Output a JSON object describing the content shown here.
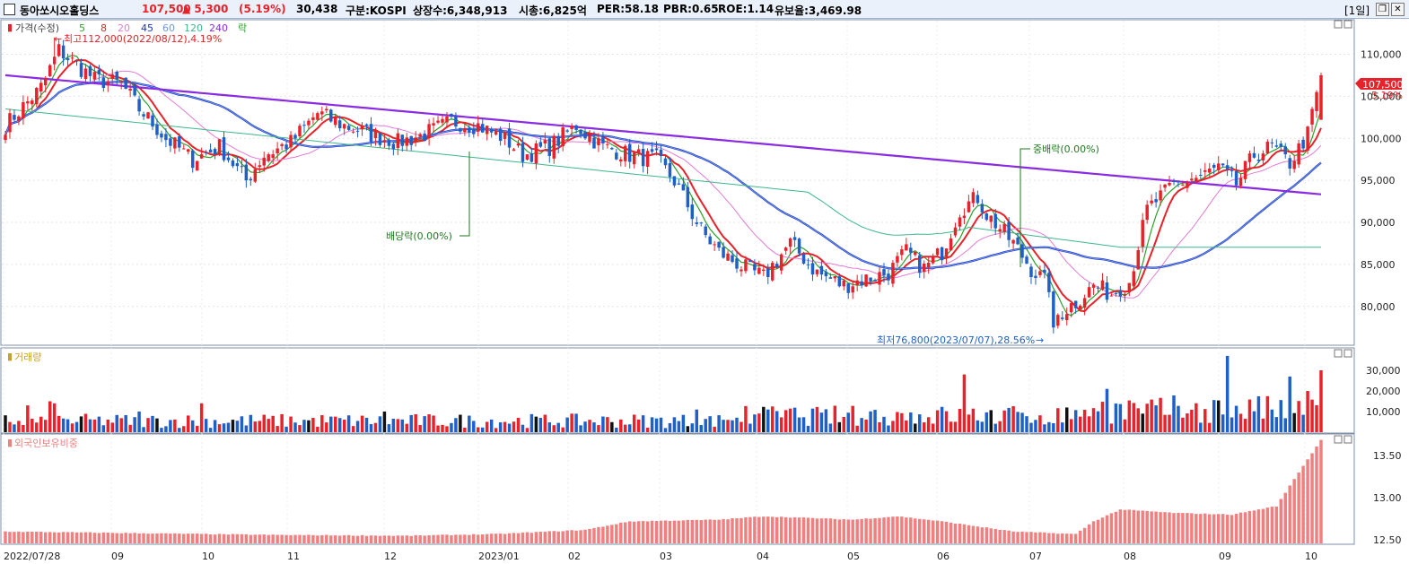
{
  "header": {
    "name": "동아쏘시오홀딩스",
    "price": "107,500",
    "change": "▲ 5,300",
    "change_pct": "(5.19%)",
    "volume": "30,438",
    "market": "구분:KOSPI",
    "shares": "상장수:6,348,913",
    "mcap": "시총:6,825억",
    "per": "PER:58.18",
    "pbr": "PBR:0.65",
    "roe": "ROE:1.14",
    "float": "유보율:3,469.98",
    "period": "[1일]",
    "btn_restore": "❐",
    "btn_close": "✕"
  },
  "legend": {
    "price": "가격(수정)",
    "ma5": "5",
    "ma8": "8",
    "ma20": "20",
    "ma45": "45",
    "ma60": "60",
    "ma120": "120",
    "ma240": "240",
    "event": "락"
  },
  "annotations": {
    "high": "최고112,000(2022/08/12),4.19%",
    "low": "최저76,800(2023/07/07),28.56%",
    "dividend": "배당락(0.00%)",
    "mid_dividend": "중배락(0.00%)",
    "last_price": "107,500",
    "last_pct": "5.19%"
  },
  "panels": {
    "volume_title": "거래량",
    "foreign_title": "외국인보유비중"
  },
  "colors": {
    "up": "#e8222a",
    "down": "#1e5fc8",
    "ma5": "#2ca02c",
    "ma8": "#e8222a",
    "ma20": "#e37bd6",
    "ma45": "#1a2fd6",
    "ma60": "#6d9ad8",
    "ma120": "#3cb88c",
    "ma240": "#8a2be2",
    "foreign": "#f08080",
    "annotation": "#1f7a1f"
  },
  "chart_data": [
    {
      "type": "candlestick",
      "title": "가격(수정)",
      "x_ticks": [
        "2022/07/28",
        "09",
        "10",
        "11",
        "12",
        "2023/01",
        "02",
        "03",
        "04",
        "05",
        "06",
        "07",
        "08",
        "09",
        "10"
      ],
      "y_ticks": [
        "110,000",
        "105,000",
        "100,000",
        "95,000",
        "90,000",
        "85,000",
        "80,000"
      ],
      "ylim": [
        75500,
        114000
      ],
      "y_tick_values": [
        110000,
        105000,
        100000,
        95000,
        90000,
        85000,
        80000
      ],
      "close_anchors": [
        [
          0,
          101500
        ],
        [
          8,
          106000
        ],
        [
          12,
          110500
        ],
        [
          20,
          107000
        ],
        [
          26,
          106500
        ],
        [
          30,
          103500
        ],
        [
          36,
          100000
        ],
        [
          42,
          97500
        ],
        [
          48,
          99000
        ],
        [
          54,
          95000
        ],
        [
          58,
          98000
        ],
        [
          64,
          99500
        ],
        [
          70,
          103000
        ],
        [
          76,
          101500
        ],
        [
          82,
          100500
        ],
        [
          88,
          99500
        ],
        [
          94,
          100500
        ],
        [
          100,
          102000
        ],
        [
          106,
          101500
        ],
        [
          112,
          100000
        ],
        [
          116,
          98000
        ],
        [
          122,
          99000
        ],
        [
          128,
          101500
        ],
        [
          134,
          99000
        ],
        [
          140,
          98000
        ],
        [
          146,
          97500
        ],
        [
          150,
          95000
        ],
        [
          156,
          89000
        ],
        [
          160,
          86500
        ],
        [
          166,
          84500
        ],
        [
          170,
          83500
        ],
        [
          176,
          87500
        ],
        [
          182,
          84000
        ],
        [
          188,
          82500
        ],
        [
          194,
          83500
        ],
        [
          198,
          84000
        ],
        [
          202,
          86500
        ],
        [
          206,
          84500
        ],
        [
          210,
          86500
        ],
        [
          214,
          91500
        ],
        [
          218,
          93000
        ],
        [
          220,
          91000
        ],
        [
          226,
          87500
        ],
        [
          230,
          84500
        ],
        [
          234,
          82500
        ],
        [
          236,
          79000
        ],
        [
          240,
          80500
        ],
        [
          244,
          82500
        ],
        [
          248,
          81500
        ],
        [
          252,
          83000
        ],
        [
          256,
          91500
        ],
        [
          262,
          94500
        ],
        [
          268,
          95500
        ],
        [
          272,
          96500
        ],
        [
          276,
          94500
        ],
        [
          280,
          98000
        ],
        [
          284,
          99000
        ],
        [
          288,
          97000
        ],
        [
          292,
          100500
        ],
        [
          295,
          107500
        ]
      ],
      "events": [
        {
          "label": "최고112,000(2022/08/12),4.19%",
          "value": 112000
        },
        {
          "label": "최저76,800(2023/07/07),28.56%",
          "value": 76800
        },
        {
          "label": "배당락(0.00%)"
        },
        {
          "label": "중배락(0.00%)"
        }
      ],
      "last": {
        "price": 107500,
        "pct": 5.19
      },
      "ma_periods": [
        5,
        8,
        20,
        45,
        60,
        120,
        240
      ]
    },
    {
      "type": "bar",
      "title": "거래량",
      "y_ticks": [
        "30,000",
        "20,000",
        "10,000"
      ],
      "y_tick_values": [
        30000,
        20000,
        10000
      ],
      "ylim": [
        0,
        40000
      ]
    },
    {
      "type": "bar",
      "title": "외국인보유비중",
      "y_ticks": [
        "13.50",
        "13.00",
        "12.50"
      ],
      "y_tick_values": [
        13.5,
        13.0,
        12.5
      ],
      "ylim": [
        12.46,
        13.72
      ],
      "anchors": [
        [
          0,
          12.6
        ],
        [
          30,
          12.58
        ],
        [
          60,
          12.56
        ],
        [
          90,
          12.55
        ],
        [
          110,
          12.57
        ],
        [
          130,
          12.62
        ],
        [
          140,
          12.72
        ],
        [
          160,
          12.74
        ],
        [
          170,
          12.78
        ],
        [
          190,
          12.74
        ],
        [
          200,
          12.78
        ],
        [
          210,
          12.72
        ],
        [
          226,
          12.6
        ],
        [
          240,
          12.57
        ],
        [
          244,
          12.72
        ],
        [
          250,
          12.86
        ],
        [
          262,
          12.82
        ],
        [
          275,
          12.8
        ],
        [
          285,
          12.9
        ],
        [
          290,
          13.3
        ],
        [
          295,
          13.68
        ]
      ]
    }
  ]
}
